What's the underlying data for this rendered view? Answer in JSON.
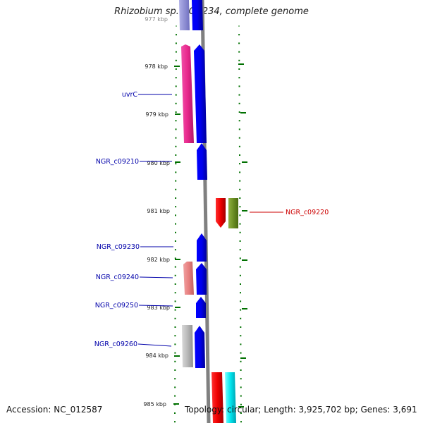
{
  "title": "Rhizobium sp. NGR234, complete genome",
  "footer": {
    "accession": "Accession: NC_012587",
    "topology": "Topology: circular; Length: 3,925,702 bp; Genes: 3,691"
  },
  "axis": {
    "ticks": [
      {
        "label": "977 kbp",
        "faded": true
      },
      {
        "label": "978 kbp"
      },
      {
        "label": "979 kbp"
      },
      {
        "label": "980 kbp"
      },
      {
        "label": "981 kbp"
      },
      {
        "label": "982 kbp"
      },
      {
        "label": "983 kbp"
      },
      {
        "label": "984 kbp"
      },
      {
        "label": "985 kbp"
      }
    ]
  },
  "gene_labels": [
    {
      "name": "uvrC",
      "color": "#0000aa"
    },
    {
      "name": "NGR_c09210",
      "color": "#0000aa"
    },
    {
      "name": "NGR_c09230",
      "color": "#0000aa"
    },
    {
      "name": "NGR_c09240",
      "color": "#0000aa"
    },
    {
      "name": "NGR_c09250",
      "color": "#0000aa"
    },
    {
      "name": "NGR_c09260",
      "color": "#0000aa"
    },
    {
      "name": "NGR_c09220",
      "color": "#cc0000"
    }
  ],
  "colors": {
    "blue": "#0000ee",
    "magenta": "#e8288c",
    "salmon": "#e88080",
    "gray": "#b8b8b8",
    "red": "#ee0000",
    "olive": "#6b8e23",
    "cyan": "#00e5ee",
    "backbone": "#808080",
    "tick_green": "#007000"
  }
}
